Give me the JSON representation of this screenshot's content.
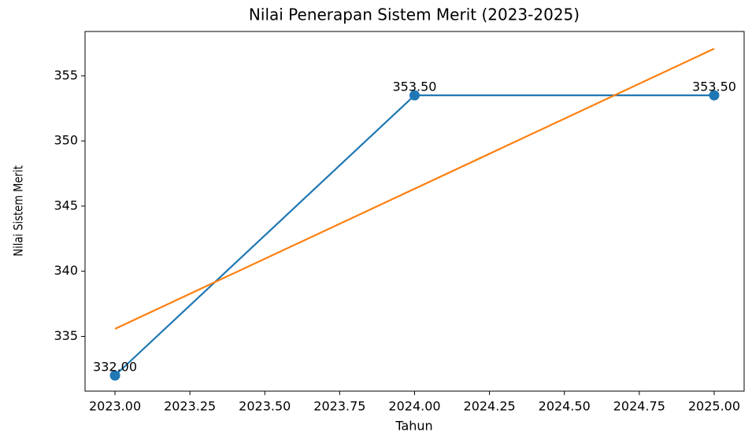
{
  "chart_data": {
    "type": "line",
    "title": "Nilai Penerapan Sistem Merit (2023-2025)",
    "xlabel": "Tahun",
    "ylabel": "Nilai Sistem Merit",
    "x": [
      2023,
      2024,
      2025
    ],
    "series": [
      {
        "color": "#1f77b4",
        "values": [
          332,
          353.5,
          353.5
        ],
        "value_labels": [
          "332.00",
          "353.50",
          "353.50"
        ],
        "markers": true
      },
      {
        "color": "#ff7f0e",
        "values": [
          335.58,
          346.33,
          357.08
        ],
        "markers": false
      }
    ],
    "xlim": [
      2022.9,
      2025.1
    ],
    "xticks": [
      {
        "value": 2023,
        "label": "2023.00"
      },
      {
        "value": 2023.25,
        "label": "2023.25"
      },
      {
        "value": 2023.5,
        "label": "2023.50"
      },
      {
        "value": 2023.75,
        "label": "2023.75"
      },
      {
        "value": 2024,
        "label": "2024.00"
      },
      {
        "value": 2024.25,
        "label": "2024.25"
      },
      {
        "value": 2024.5,
        "label": "2024.50"
      },
      {
        "value": 2024.75,
        "label": "2024.75"
      },
      {
        "value": 2025,
        "label": "2025.00"
      }
    ],
    "ylim": [
      330.8,
      358.4
    ],
    "yticks": [
      335,
      340,
      345,
      350,
      355
    ],
    "grid": false
  }
}
